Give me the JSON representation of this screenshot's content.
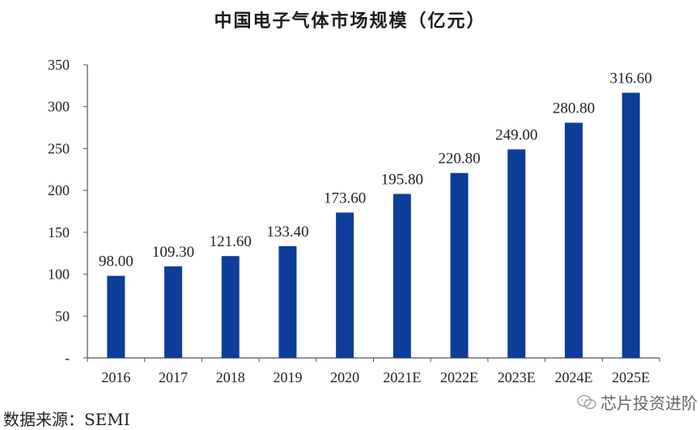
{
  "chart_data": {
    "type": "bar",
    "title": "中国电子气体市场规模（亿元）",
    "categories": [
      "2016",
      "2017",
      "2018",
      "2019",
      "2020",
      "2021E",
      "2022E",
      "2023E",
      "2024E",
      "2025E"
    ],
    "values": [
      98.0,
      109.3,
      121.6,
      133.4,
      173.6,
      195.8,
      220.8,
      249.0,
      280.8,
      316.6
    ],
    "value_labels": [
      "98.00",
      "109.30",
      "121.60",
      "133.40",
      "173.60",
      "195.80",
      "220.80",
      "249.00",
      "280.80",
      "316.60"
    ],
    "xlabel": "",
    "ylabel": "",
    "ylim": [
      0,
      350
    ],
    "yticks": [
      0,
      50,
      100,
      150,
      200,
      250,
      300,
      350
    ],
    "ytick_labels": [
      "-",
      "50",
      "100",
      "150",
      "200",
      "250",
      "300",
      "350"
    ],
    "grid": false,
    "legend": null,
    "bar_color": "#0e3d9a"
  },
  "footer": {
    "source": "数据来源：SEMI",
    "watermark": "芯片投资进阶",
    "watermark_icon": "wechat-icon"
  }
}
